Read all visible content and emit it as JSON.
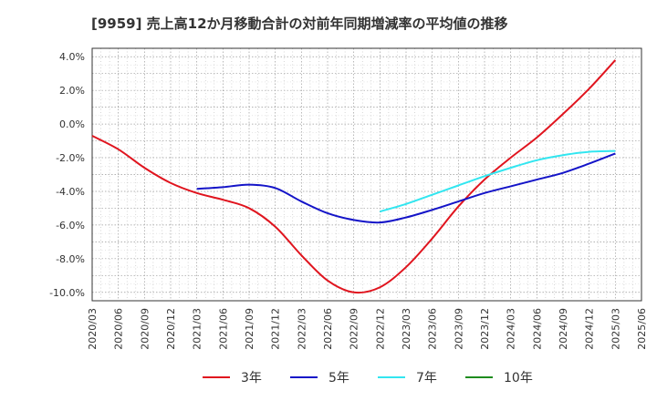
{
  "chart_data": {
    "type": "line",
    "title": "[9959]  売上高12か月移動合計の対前年同期増減率の平均値の推移",
    "xlabel": "",
    "ylabel": "",
    "ylim": [
      -10.5,
      4.5
    ],
    "yticks": [
      4,
      2,
      0,
      -2,
      -4,
      -6,
      -8,
      -10
    ],
    "ytick_labels": [
      "4.0%",
      "2.0%",
      "0.0%",
      "-2.0%",
      "-4.0%",
      "-6.0%",
      "-8.0%",
      "-10.0%"
    ],
    "x_categories": [
      "2020/03",
      "2020/06",
      "2020/09",
      "2020/12",
      "2021/03",
      "2021/06",
      "2021/09",
      "2021/12",
      "2022/03",
      "2022/06",
      "2022/09",
      "2022/12",
      "2023/03",
      "2023/06",
      "2023/09",
      "2023/12",
      "2024/03",
      "2024/06",
      "2024/09",
      "2024/12",
      "2025/03",
      "2025/06"
    ],
    "grid": true,
    "legend_position": "bottom",
    "series": [
      {
        "name": "3年",
        "color": "#e0141e",
        "points": [
          [
            "2020/03",
            -0.7
          ],
          [
            "2020/06",
            -1.5
          ],
          [
            "2020/09",
            -2.6
          ],
          [
            "2020/12",
            -3.5
          ],
          [
            "2021/03",
            -4.1
          ],
          [
            "2021/06",
            -4.5
          ],
          [
            "2021/09",
            -5.0
          ],
          [
            "2021/12",
            -6.1
          ],
          [
            "2022/03",
            -7.8
          ],
          [
            "2022/06",
            -9.3
          ],
          [
            "2022/09",
            -10.0
          ],
          [
            "2022/12",
            -9.7
          ],
          [
            "2023/03",
            -8.5
          ],
          [
            "2023/06",
            -6.8
          ],
          [
            "2023/09",
            -4.9
          ],
          [
            "2023/12",
            -3.3
          ],
          [
            "2024/03",
            -2.0
          ],
          [
            "2024/06",
            -0.8
          ],
          [
            "2024/09",
            0.6
          ],
          [
            "2024/12",
            2.1
          ],
          [
            "2025/03",
            3.8
          ]
        ]
      },
      {
        "name": "5年",
        "color": "#1414c8",
        "points": [
          [
            "2021/03",
            -3.85
          ],
          [
            "2021/06",
            -3.75
          ],
          [
            "2021/09",
            -3.6
          ],
          [
            "2021/12",
            -3.8
          ],
          [
            "2022/03",
            -4.6
          ],
          [
            "2022/06",
            -5.3
          ],
          [
            "2022/09",
            -5.7
          ],
          [
            "2022/12",
            -5.85
          ],
          [
            "2023/03",
            -5.55
          ],
          [
            "2023/06",
            -5.1
          ],
          [
            "2023/09",
            -4.6
          ],
          [
            "2023/12",
            -4.1
          ],
          [
            "2024/03",
            -3.7
          ],
          [
            "2024/06",
            -3.3
          ],
          [
            "2024/09",
            -2.9
          ],
          [
            "2024/12",
            -2.35
          ],
          [
            "2025/03",
            -1.75
          ]
        ]
      },
      {
        "name": "7年",
        "color": "#32e6f0",
        "points": [
          [
            "2022/12",
            -5.2
          ],
          [
            "2023/03",
            -4.75
          ],
          [
            "2023/06",
            -4.2
          ],
          [
            "2023/09",
            -3.65
          ],
          [
            "2023/12",
            -3.1
          ],
          [
            "2024/03",
            -2.6
          ],
          [
            "2024/06",
            -2.15
          ],
          [
            "2024/09",
            -1.85
          ],
          [
            "2024/12",
            -1.65
          ],
          [
            "2025/03",
            -1.6
          ]
        ]
      },
      {
        "name": "10年",
        "color": "#1e8c1e",
        "points": []
      }
    ]
  }
}
